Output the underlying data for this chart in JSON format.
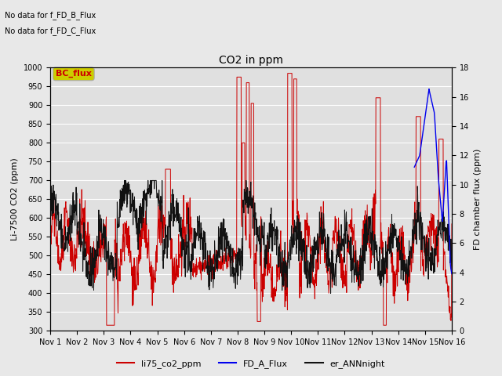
{
  "title": "CO2 in ppm",
  "ylabel_left": "Li-7500 CO2 (ppm)",
  "ylabel_right": "FD chamber flux (ppm)",
  "text_no_data_1": "No data for f_FD_B_Flux",
  "text_no_data_2": "No data for f_FD_C_Flux",
  "bc_flux_label": "BC_flux",
  "ylim_left": [
    300,
    1000
  ],
  "ylim_right": [
    0,
    18
  ],
  "xtick_labels": [
    "Nov 1",
    "Nov 2",
    "Nov 3",
    "Nov 4",
    "Nov 5",
    "Nov 6",
    "Nov 7",
    "Nov 8",
    "Nov 9",
    "Nov 10",
    "Nov 11",
    "Nov 12",
    "Nov 13",
    "Nov 14",
    "Nov 15",
    "Nov 16"
  ],
  "legend_entries": [
    "li75_co2_ppm",
    "FD_A_Flux",
    "er_ANNnight"
  ],
  "colors": {
    "li75": "#cc0000",
    "fd_a": "#0000ee",
    "er_ann": "#111111",
    "bc_flux_bg": "#cccc00",
    "bc_flux_text": "#cc0000"
  },
  "background_color": "#e0e0e0",
  "fig_facecolor": "#e8e8e8",
  "grid_color": "#ffffff"
}
